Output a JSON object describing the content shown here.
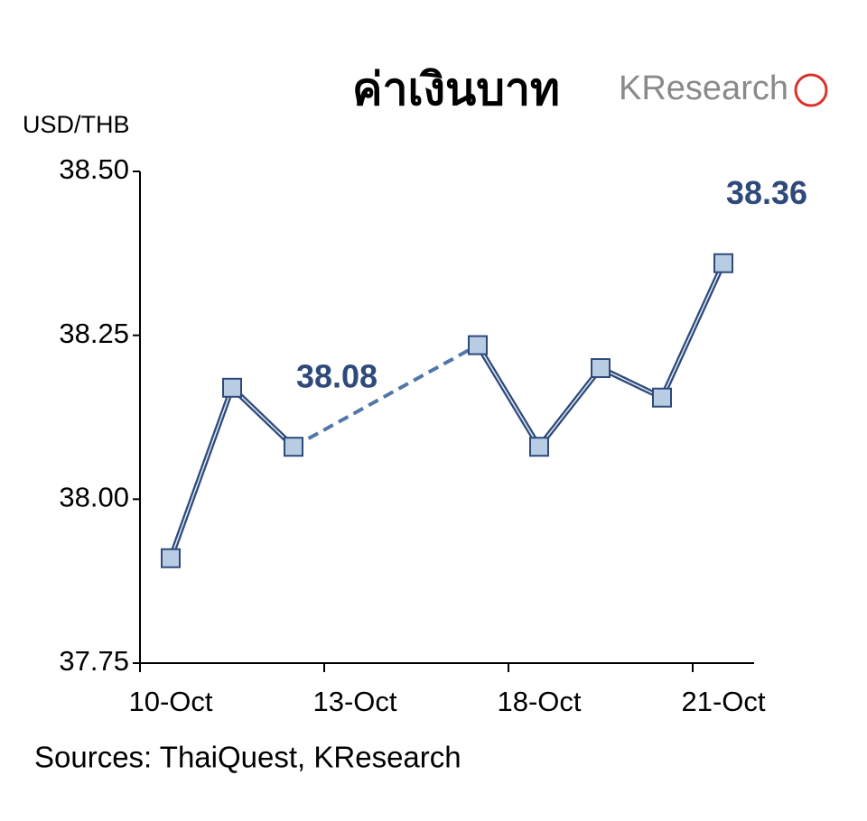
{
  "chart_data": {
    "type": "line",
    "title": "ค่าเงินบาท",
    "logo": "KResearch",
    "y_axis_label": "USD/THB",
    "source": "Sources: ThaiQuest, KResearch",
    "categories": [
      "10-Oct",
      null,
      null,
      "13-Oct",
      null,
      null,
      "18-Oct",
      null,
      null,
      "21-Oct"
    ],
    "values": [
      37.91,
      38.17,
      38.08,
      null,
      null,
      38.235,
      38.08,
      38.2,
      38.155,
      38.36
    ],
    "labeled_points": [
      2,
      9
    ],
    "color": "#2e4a7a",
    "marker_color": "#b8cce4",
    "gap_style": "dashed",
    "ylim": [
      37.75,
      38.5
    ],
    "yticks": [
      {
        "value": 37.75,
        "label": "37.75"
      },
      {
        "value": 38.0,
        "label": "38.00"
      },
      {
        "value": 38.25,
        "label": "38.25"
      },
      {
        "value": 38.5,
        "label": "38.50"
      }
    ]
  }
}
